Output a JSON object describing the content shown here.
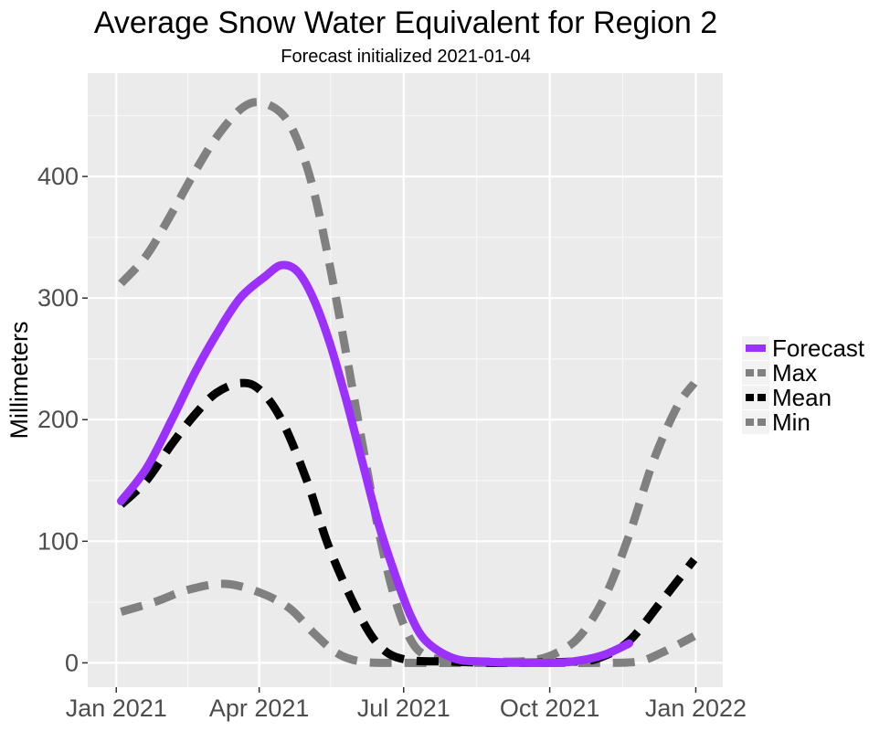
{
  "chart_data": {
    "type": "line",
    "title": "Average Snow Water Equivalent for Region 2",
    "subtitle": "Forecast initialized 2021-01-04",
    "xlabel": "",
    "ylabel": "Millimeters",
    "x_axis": {
      "type": "date",
      "range": [
        "2020-12-14",
        "2022-01-18"
      ],
      "ticks": [
        {
          "date": "2021-01-01",
          "label": "Jan 2021"
        },
        {
          "date": "2021-04-01",
          "label": "Apr 2021"
        },
        {
          "date": "2021-07-01",
          "label": "Jul 2021"
        },
        {
          "date": "2021-10-01",
          "label": "Oct 2021"
        },
        {
          "date": "2022-01-01",
          "label": "Jan 2022"
        }
      ],
      "minor_ticks": [
        "2021-02-15",
        "2021-05-16",
        "2021-08-16",
        "2021-11-16"
      ]
    },
    "y_axis": {
      "range": [
        -20,
        485
      ],
      "ticks": [
        0,
        100,
        200,
        300,
        400
      ],
      "minor_ticks": [
        50,
        150,
        250,
        350,
        450
      ]
    },
    "grid": true,
    "legend": {
      "position": "right"
    },
    "series": [
      {
        "name": "Max",
        "color": "#808080",
        "style": "dashed",
        "points": [
          [
            "2021-01-04",
            312
          ],
          [
            "2021-01-20",
            335
          ],
          [
            "2021-02-05",
            370
          ],
          [
            "2021-02-20",
            405
          ],
          [
            "2021-03-05",
            432
          ],
          [
            "2021-03-20",
            455
          ],
          [
            "2021-04-01",
            461
          ],
          [
            "2021-04-15",
            452
          ],
          [
            "2021-04-25",
            430
          ],
          [
            "2021-05-05",
            390
          ],
          [
            "2021-05-15",
            330
          ],
          [
            "2021-05-25",
            260
          ],
          [
            "2021-06-05",
            180
          ],
          [
            "2021-06-15",
            110
          ],
          [
            "2021-06-25",
            55
          ],
          [
            "2021-07-05",
            20
          ],
          [
            "2021-07-15",
            6
          ],
          [
            "2021-08-01",
            2
          ],
          [
            "2021-09-01",
            1
          ],
          [
            "2021-09-20",
            2
          ],
          [
            "2021-10-05",
            8
          ],
          [
            "2021-10-20",
            22
          ],
          [
            "2021-11-05",
            55
          ],
          [
            "2021-11-20",
            105
          ],
          [
            "2021-12-05",
            165
          ],
          [
            "2021-12-20",
            210
          ],
          [
            "2021-12-31",
            230
          ]
        ]
      },
      {
        "name": "Min",
        "color": "#808080",
        "style": "dashed",
        "points": [
          [
            "2021-01-04",
            42
          ],
          [
            "2021-01-25",
            50
          ],
          [
            "2021-02-15",
            60
          ],
          [
            "2021-03-10",
            65
          ],
          [
            "2021-04-01",
            58
          ],
          [
            "2021-04-20",
            45
          ],
          [
            "2021-05-05",
            25
          ],
          [
            "2021-05-20",
            8
          ],
          [
            "2021-06-05",
            1
          ],
          [
            "2021-07-01",
            0
          ],
          [
            "2021-09-01",
            0
          ],
          [
            "2021-11-01",
            0
          ],
          [
            "2021-11-25",
            1
          ],
          [
            "2021-12-10",
            8
          ],
          [
            "2021-12-31",
            22
          ]
        ]
      },
      {
        "name": "Mean",
        "color": "#000000",
        "style": "dashed",
        "points": [
          [
            "2021-01-04",
            130
          ],
          [
            "2021-01-20",
            150
          ],
          [
            "2021-02-05",
            180
          ],
          [
            "2021-02-20",
            205
          ],
          [
            "2021-03-05",
            222
          ],
          [
            "2021-03-20",
            230
          ],
          [
            "2021-04-01",
            225
          ],
          [
            "2021-04-15",
            200
          ],
          [
            "2021-05-01",
            150
          ],
          [
            "2021-05-15",
            95
          ],
          [
            "2021-06-01",
            45
          ],
          [
            "2021-06-15",
            15
          ],
          [
            "2021-07-01",
            3
          ],
          [
            "2021-08-01",
            1
          ],
          [
            "2021-09-01",
            0
          ],
          [
            "2021-10-15",
            1
          ],
          [
            "2021-11-01",
            4
          ],
          [
            "2021-11-20",
            18
          ],
          [
            "2021-12-10",
            50
          ],
          [
            "2021-12-31",
            85
          ]
        ]
      },
      {
        "name": "Forecast",
        "color": "#9b30ff",
        "style": "solid",
        "points": [
          [
            "2021-01-04",
            133
          ],
          [
            "2021-01-20",
            160
          ],
          [
            "2021-02-05",
            200
          ],
          [
            "2021-02-20",
            240
          ],
          [
            "2021-03-05",
            270
          ],
          [
            "2021-03-20",
            300
          ],
          [
            "2021-04-05",
            318
          ],
          [
            "2021-04-15",
            327
          ],
          [
            "2021-04-25",
            322
          ],
          [
            "2021-05-05",
            300
          ],
          [
            "2021-05-15",
            265
          ],
          [
            "2021-05-25",
            220
          ],
          [
            "2021-06-05",
            165
          ],
          [
            "2021-06-15",
            115
          ],
          [
            "2021-06-25",
            75
          ],
          [
            "2021-07-05",
            40
          ],
          [
            "2021-07-15",
            18
          ],
          [
            "2021-08-01",
            4
          ],
          [
            "2021-08-20",
            1
          ],
          [
            "2021-10-01",
            0
          ],
          [
            "2021-10-20",
            2
          ],
          [
            "2021-11-05",
            7
          ],
          [
            "2021-11-20",
            16
          ]
        ]
      }
    ],
    "legend_order": [
      "Forecast",
      "Max",
      "Mean",
      "Min"
    ]
  }
}
